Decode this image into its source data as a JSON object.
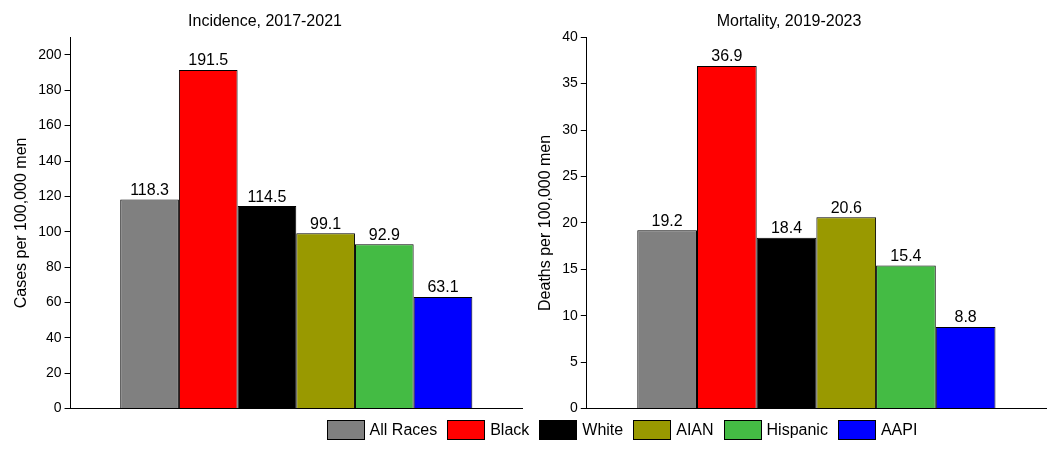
{
  "chart_data": [
    {
      "type": "bar",
      "title": "Incidence, 2017-2021",
      "ylabel": "Cases per 100,000 men",
      "categories": [
        null
      ],
      "ylim": [
        0,
        210
      ],
      "yticks": [
        0,
        20,
        40,
        60,
        80,
        100,
        120,
        140,
        160,
        180,
        200
      ],
      "grid": false,
      "legend": "bottom",
      "data_labels": true,
      "series": [
        {
          "name": "All Races",
          "color": "#808080",
          "values": [
            118.3
          ]
        },
        {
          "name": "Black",
          "color": "#ff0000",
          "values": [
            191.5
          ]
        },
        {
          "name": "White",
          "color": "#000000",
          "values": [
            114.5
          ]
        },
        {
          "name": "AIAN",
          "color": "#999900",
          "values": [
            99.1
          ]
        },
        {
          "name": "Hispanic",
          "color": "#44bb44",
          "values": [
            92.9
          ]
        },
        {
          "name": "AAPI",
          "color": "#0000ff",
          "values": [
            63.1
          ]
        }
      ]
    },
    {
      "type": "bar",
      "title": "Mortality, 2019-2023",
      "ylabel": "Deaths per 100,000 men",
      "categories": [
        null
      ],
      "ylim": [
        0,
        40
      ],
      "yticks": [
        0,
        5,
        10,
        15,
        20,
        25,
        30,
        35,
        40
      ],
      "grid": false,
      "legend": "bottom",
      "data_labels": true,
      "series": [
        {
          "name": "All Races",
          "color": "#808080",
          "values": [
            19.2
          ]
        },
        {
          "name": "Black",
          "color": "#ff0000",
          "values": [
            36.9
          ]
        },
        {
          "name": "White",
          "color": "#000000",
          "values": [
            18.4
          ]
        },
        {
          "name": "AIAN",
          "color": "#999900",
          "values": [
            20.6
          ]
        },
        {
          "name": "Hispanic",
          "color": "#44bb44",
          "values": [
            15.4
          ]
        },
        {
          "name": "AAPI",
          "color": "#0000ff",
          "values": [
            8.8
          ]
        }
      ]
    }
  ]
}
